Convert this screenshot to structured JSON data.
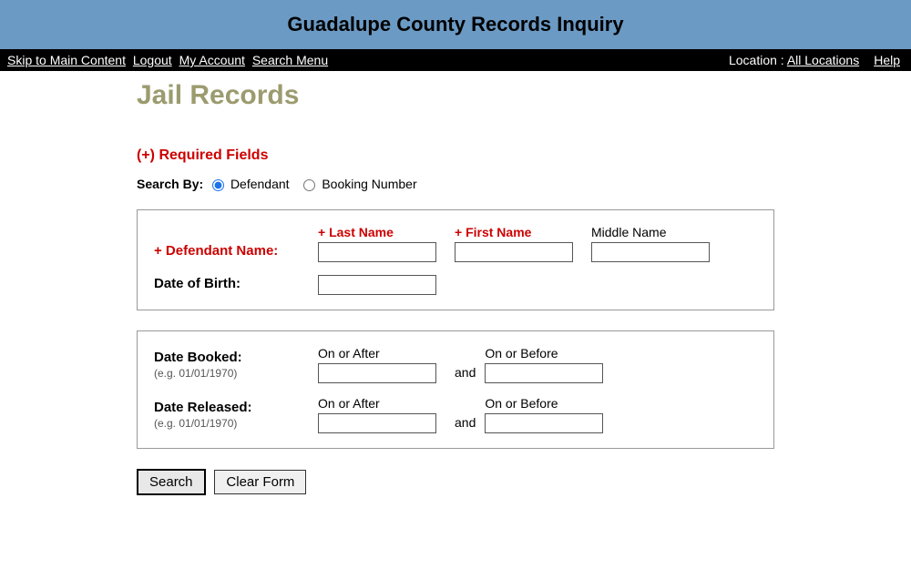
{
  "header": {
    "title": "Guadalupe County Records Inquiry"
  },
  "nav": {
    "skip": "Skip to Main Content",
    "logout": "Logout",
    "account": "My Account",
    "searchmenu": "Search Menu",
    "location_label": "Location :",
    "location_value": "All Locations",
    "help": "Help"
  },
  "page": {
    "title": "Jail Records"
  },
  "form": {
    "required_legend": "(+) Required Fields",
    "search_by_label": "Search By:",
    "radio_defendant": "Defendant",
    "radio_booking": "Booking Number",
    "defendant_name_label": "+ Defendant Name:",
    "last_name_label": "+ Last Name",
    "first_name_label": "+ First Name",
    "middle_name_label": "Middle Name",
    "dob_label": "Date of Birth:",
    "date_booked_label": "Date Booked:",
    "date_released_label": "Date Released:",
    "date_hint": "(e.g. 01/01/1970)",
    "on_after_label": "On or After",
    "on_before_label": "On or Before",
    "and_word": "and",
    "search_btn": "Search",
    "clear_btn": "Clear Form"
  },
  "colors": {
    "banner_bg": "#6b9ac4",
    "title_color": "#9b9b6f",
    "required_color": "#cc0000"
  }
}
